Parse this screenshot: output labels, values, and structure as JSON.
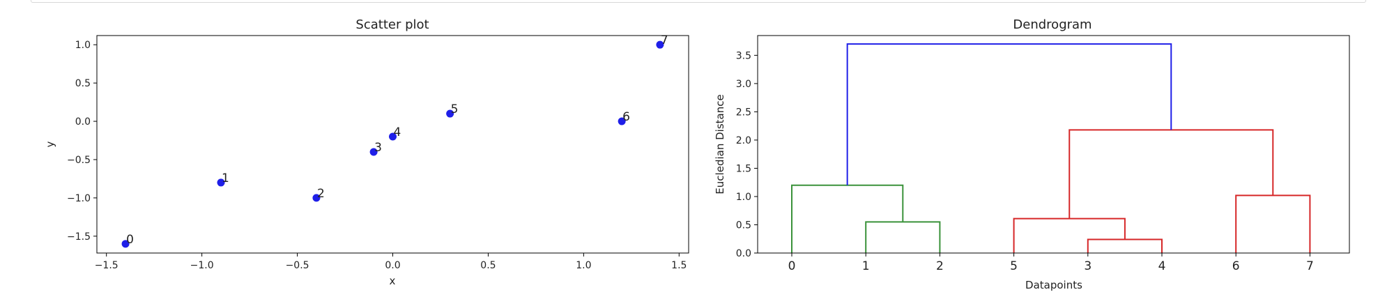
{
  "chart_data": [
    {
      "type": "scatter",
      "title": "Scatter plot",
      "xlabel": "x",
      "ylabel": "y",
      "xlim": [
        -1.55,
        1.55
      ],
      "ylim": [
        -1.72,
        1.12
      ],
      "xticks": [
        -1.5,
        -1.0,
        -0.5,
        0.0,
        0.5,
        1.0,
        1.5
      ],
      "xtick_labels": [
        "−1.5",
        "−1.0",
        "−0.5",
        "0.0",
        "0.5",
        "1.0",
        "1.5"
      ],
      "yticks": [
        -1.5,
        -1.0,
        -0.5,
        0.0,
        0.5,
        1.0
      ],
      "ytick_labels": [
        "−1.5",
        "−1.0",
        "−0.5",
        "0.0",
        "0.5",
        "1.0"
      ],
      "point_color": "#1f1fe8",
      "points": [
        {
          "label": "0",
          "x": -1.4,
          "y": -1.6
        },
        {
          "label": "1",
          "x": -0.9,
          "y": -0.8
        },
        {
          "label": "2",
          "x": -0.4,
          "y": -1.0
        },
        {
          "label": "3",
          "x": -0.1,
          "y": -0.4
        },
        {
          "label": "4",
          "x": 0.0,
          "y": -0.2
        },
        {
          "label": "5",
          "x": 0.3,
          "y": 0.1
        },
        {
          "label": "6",
          "x": 1.2,
          "y": 0.0
        },
        {
          "label": "7",
          "x": 1.4,
          "y": 1.0
        }
      ]
    },
    {
      "type": "dendrogram",
      "title": "Dendrogram",
      "xlabel": "Datapoints",
      "ylabel": "Eucledian Distance",
      "ylim": [
        0,
        3.85
      ],
      "yticks": [
        0.0,
        0.5,
        1.0,
        1.5,
        2.0,
        2.5,
        3.0,
        3.5
      ],
      "ytick_labels": [
        "0.0",
        "0.5",
        "1.0",
        "1.5",
        "2.0",
        "2.5",
        "3.0",
        "3.5"
      ],
      "leaves": [
        "0",
        "1",
        "2",
        "5",
        "3",
        "4",
        "6",
        "7"
      ],
      "colors": {
        "green": "#3a923a",
        "red": "#d62728",
        "blue": "#1f1fe8"
      },
      "links": [
        {
          "left": 1.0,
          "right": 2.0,
          "h_left": 0.0,
          "h_right": 0.0,
          "height": 0.55,
          "color": "green"
        },
        {
          "left": 0.0,
          "right": 1.5,
          "h_left": 0.0,
          "h_right": 0.55,
          "height": 1.2,
          "color": "green"
        },
        {
          "left": 4.0,
          "right": 5.0,
          "h_left": 0.0,
          "h_right": 0.0,
          "height": 0.24,
          "color": "red"
        },
        {
          "left": 3.0,
          "right": 4.5,
          "h_left": 0.0,
          "h_right": 0.24,
          "height": 0.61,
          "color": "red"
        },
        {
          "left": 6.0,
          "right": 7.0,
          "h_left": 0.0,
          "h_right": 0.0,
          "height": 1.02,
          "color": "red"
        },
        {
          "left": 3.75,
          "right": 6.5,
          "h_left": 0.61,
          "h_right": 1.02,
          "height": 2.18,
          "color": "red"
        },
        {
          "left": 0.75,
          "right": 5.125,
          "h_left": 1.2,
          "h_right": 2.18,
          "height": 3.7,
          "color": "blue"
        }
      ]
    }
  ]
}
